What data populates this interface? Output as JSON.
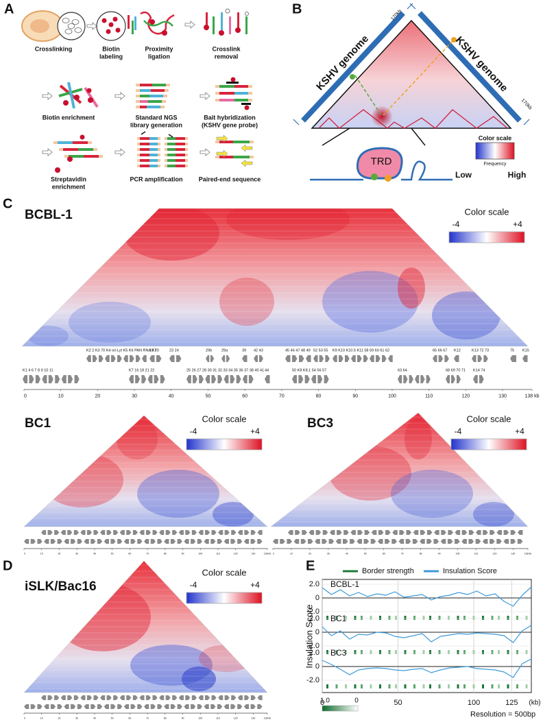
{
  "panel_a": {
    "label": "A",
    "steps": [
      {
        "lines": [
          "Crosslinking"
        ]
      },
      {
        "lines": [
          "Biotin",
          "labeling"
        ]
      },
      {
        "lines": [
          "Proximity",
          "ligation"
        ]
      },
      {
        "lines": [
          "Crosslink",
          "removal"
        ]
      },
      {
        "lines": [
          "Biotin enrichment"
        ]
      },
      {
        "lines": [
          "Standard NGS",
          "library generation"
        ]
      },
      {
        "lines": [
          "Bait hybridization",
          "(KSHV gene probe)"
        ]
      },
      {
        "lines": [
          "Streptavidin",
          "enrichment"
        ]
      },
      {
        "lines": [
          "PCR amplification"
        ]
      },
      {
        "lines": [
          "Paired-end sequence"
        ]
      }
    ]
  },
  "panel_b": {
    "label": "B",
    "genome_left": "KSHV genome",
    "genome_right": "KSHV genome",
    "size_left": "170kb",
    "size_right": "170kb",
    "domain": "TRD",
    "scale_title": "Color scale",
    "scale_subtitle": "Frequency",
    "low": "Low",
    "high": "High"
  },
  "panel_c": {
    "label": "C",
    "maps": [
      {
        "name": "BCBL-1",
        "scale_title": "Color scale",
        "scale_min": "-4",
        "scale_max": "+4"
      },
      {
        "name": "BC1",
        "scale_title": "Color scale",
        "scale_min": "-4",
        "scale_max": "+4"
      },
      {
        "name": "BC3",
        "scale_title": "Color scale",
        "scale_min": "-4",
        "scale_max": "+4"
      }
    ],
    "genes_top": [
      "K2 2 K3 70 K4 ori-Lyt K5 K6 PAN RNA K7",
      "19 20",
      "23 24",
      "29b",
      "29a",
      "39",
      "42 43",
      "45 46 47 48 49",
      "52 53 55",
      "K9 K10 K10.5 K11 58 59 60 61 62",
      "65 66 67",
      "K12",
      "K13 72 73",
      "75",
      "K15"
    ],
    "genes_bottom": [
      "K1 4 6 7 8 9 10 11",
      "K7 16 18 21 22",
      "25 26 27 28 30 31 32 33 34 35 36 37 38 40 41",
      "44",
      "50 K8 K8.1 54 56 57",
      "63 64",
      "68 69 70 71",
      "K14 74"
    ],
    "axis_ticks": [
      0,
      10,
      20,
      30,
      40,
      50,
      60,
      70,
      80,
      90,
      100,
      110,
      120,
      130,
      {
        "value": 138,
        "label": "138 kb"
      }
    ]
  },
  "panel_d": {
    "label": "D",
    "name": "iSLK/Bac16",
    "scale_title": "Color scale",
    "scale_min": "-4",
    "scale_max": "+4"
  },
  "panel_e": {
    "label": "E",
    "legend": [
      {
        "name": "Border strength",
        "color": "#1e7a3a"
      },
      {
        "name": "Insulation Score",
        "color": "#3b9ad9"
      }
    ],
    "y_label": "Insulation Score",
    "yticks": [
      {
        "value": 2,
        "label": "2.0"
      },
      0,
      {
        "value": -2,
        "label": "-2.0"
      }
    ],
    "xlim": [
      0,
      138
    ],
    "xticks": [
      0,
      50,
      100,
      125
    ],
    "x_unit": "(kb)",
    "x": [
      0,
      6,
      12,
      18,
      24,
      30,
      36,
      42,
      48,
      54,
      60,
      66,
      72,
      78,
      84,
      90,
      96,
      102,
      108,
      114,
      120,
      126,
      132,
      138
    ],
    "tracks": [
      {
        "name": "BCBL-1",
        "values": [
          1.5,
          0.5,
          1.2,
          0.3,
          0.8,
          0.2,
          0.6,
          0.4,
          0.9,
          0.1,
          0.3,
          0.5,
          -0.3,
          0.2,
          0.4,
          0.8,
          0.5,
          1.0,
          0.3,
          0.6,
          -0.5,
          -1.2,
          0.4,
          1.6
        ]
      },
      {
        "name": "BC1",
        "values": [
          0.8,
          -0.5,
          0.2,
          -1.0,
          -0.3,
          -0.4,
          0.0,
          -0.1,
          -0.6,
          -0.8,
          -0.5,
          -0.2,
          -1.4,
          -0.6,
          -0.4,
          -0.2,
          -0.3,
          -0.1,
          -0.2,
          -0.3,
          -0.5,
          -1.5,
          0.2,
          1.0
        ]
      },
      {
        "name": "BC3",
        "values": [
          0.9,
          0.3,
          -0.4,
          -1.2,
          -0.5,
          -0.3,
          -0.2,
          -0.3,
          -0.5,
          -0.6,
          -0.4,
          -0.3,
          -0.9,
          -0.5,
          -0.2,
          -0.1,
          0.0,
          -0.3,
          -0.4,
          -0.5,
          -0.8,
          -1.6,
          0.4,
          1.1
        ]
      }
    ],
    "colorbar_max": "1.0",
    "colorbar_min": "0",
    "resolution": "Resolution = 500bp"
  }
}
